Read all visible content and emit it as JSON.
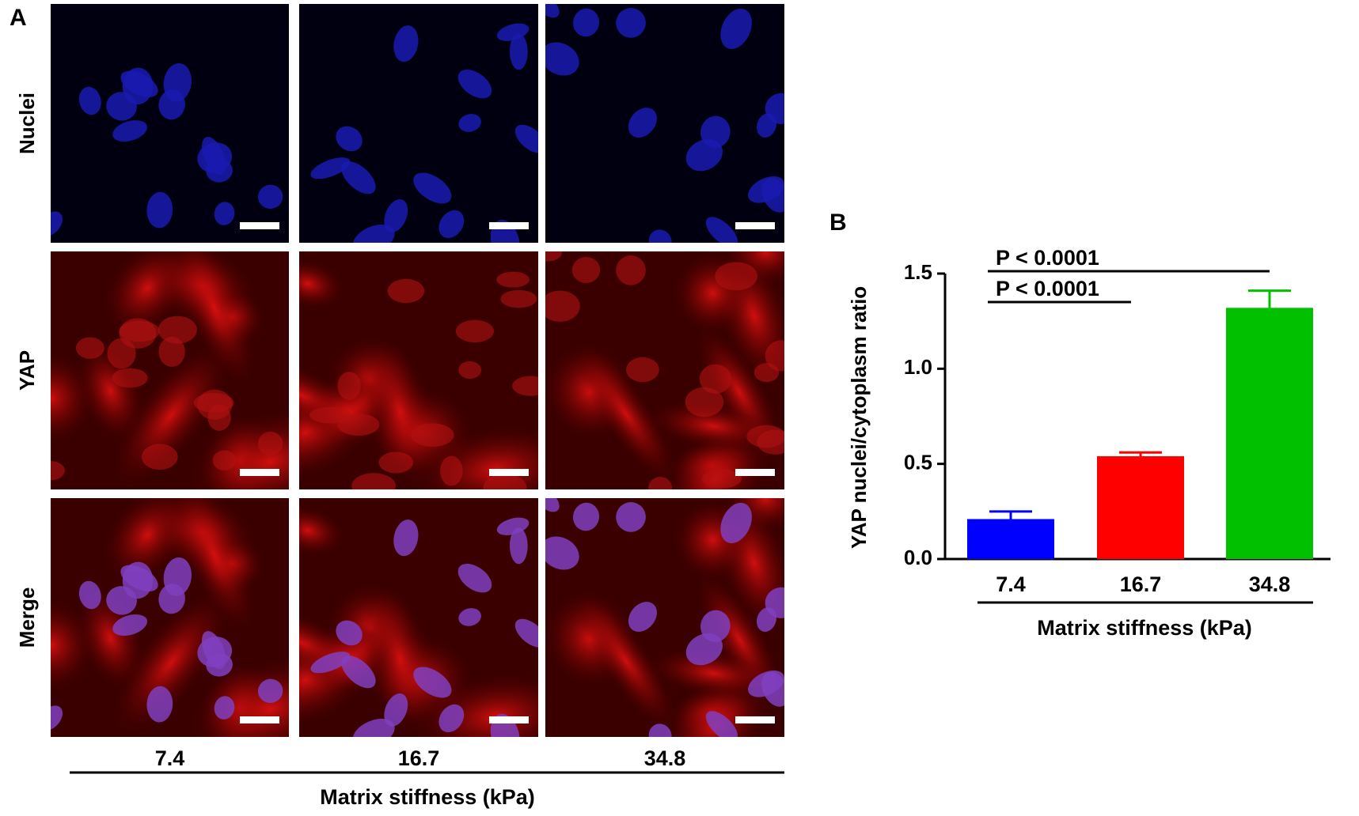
{
  "panel_a": {
    "label": "A",
    "row_labels": [
      "Nuclei",
      "YAP",
      "Merge"
    ],
    "column_labels": [
      "7.4",
      "16.7",
      "34.8"
    ],
    "x_label": "Matrix stiffness (kPa)"
  },
  "chart_data": {
    "type": "bar",
    "panel_label": "B",
    "y_label": "YAP nuclei/cytoplasm ratio",
    "x_label": "Matrix stiffness (kPa)",
    "categories": [
      "7.4",
      "16.7",
      "34.8"
    ],
    "values": [
      0.21,
      0.54,
      1.32
    ],
    "errors": [
      0.04,
      0.02,
      0.09
    ],
    "colors": [
      "#0000ff",
      "#ff0000",
      "#00c000"
    ],
    "ylim": [
      0,
      1.5
    ],
    "yticks": [
      {
        "value": 0,
        "label": "0.0"
      },
      0.5,
      {
        "value": 1,
        "label": "1.0"
      },
      1.5
    ],
    "annotations": [
      "P < 0.0001",
      "P < 0.0001"
    ]
  }
}
